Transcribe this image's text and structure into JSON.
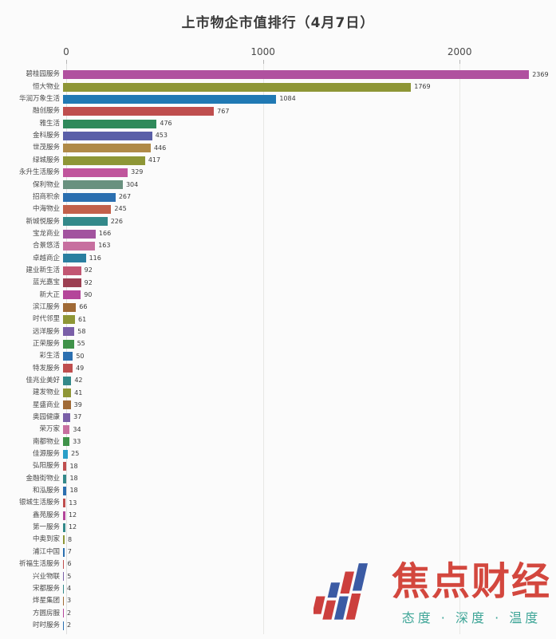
{
  "title": "上市物企市值排行（4月7日）",
  "watermark": {
    "brand": "焦点财经",
    "tagline": "态度 · 深度 · 温度",
    "brand_color": "#d03a30",
    "tagline_color": "#2f9f90",
    "icon_red": "#c9312f",
    "icon_blue": "#2d4f9e"
  },
  "chart_data": {
    "type": "bar",
    "orientation": "horizontal",
    "title": "上市物企市值排行（4月7日）",
    "xlabel": "",
    "ylabel": "",
    "xlim": [
      0,
      2450
    ],
    "x_ticks": [
      0,
      1000,
      2000
    ],
    "grid": "vertical-light",
    "items": [
      {
        "label": "碧桂园服务",
        "value": 2369,
        "color": "#b0519f"
      },
      {
        "label": "恒大物业",
        "value": 1769,
        "color": "#8e9636"
      },
      {
        "label": "华润万象生活",
        "value": 1084,
        "color": "#2079b4"
      },
      {
        "label": "融创服务",
        "value": 767,
        "color": "#bf4e4e"
      },
      {
        "label": "雅生活",
        "value": 476,
        "color": "#2f8a5b"
      },
      {
        "label": "金科服务",
        "value": 453,
        "color": "#5a5fa8"
      },
      {
        "label": "世茂服务",
        "value": 446,
        "color": "#b08a47"
      },
      {
        "label": "绿城服务",
        "value": 417,
        "color": "#8e9636"
      },
      {
        "label": "永升生活服务",
        "value": 329,
        "color": "#c0559c"
      },
      {
        "label": "保利物业",
        "value": 304,
        "color": "#69917f"
      },
      {
        "label": "招商积余",
        "value": 267,
        "color": "#2b6fb0"
      },
      {
        "label": "中海物业",
        "value": 245,
        "color": "#c2604a"
      },
      {
        "label": "新城悦服务",
        "value": 226,
        "color": "#33898a"
      },
      {
        "label": "宝龙商业",
        "value": 166,
        "color": "#a2539f"
      },
      {
        "label": "合景悠活",
        "value": 163,
        "color": "#c76f9f"
      },
      {
        "label": "卓越商企",
        "value": 116,
        "color": "#2a7fa0"
      },
      {
        "label": "建业新生活",
        "value": 92,
        "color": "#c25672"
      },
      {
        "label": "蓝光嘉宝",
        "value": 92,
        "color": "#9c3f52"
      },
      {
        "label": "新大正",
        "value": 90,
        "color": "#b4459a"
      },
      {
        "label": "滨江服务",
        "value": 66,
        "color": "#a06a36"
      },
      {
        "label": "时代邻里",
        "value": 61,
        "color": "#8e9636"
      },
      {
        "label": "远洋服务",
        "value": 58,
        "color": "#7a5fa8"
      },
      {
        "label": "正荣服务",
        "value": 55,
        "color": "#3f9249"
      },
      {
        "label": "彩生活",
        "value": 50,
        "color": "#2b6fb0"
      },
      {
        "label": "特发服务",
        "value": 49,
        "color": "#bf4e4e"
      },
      {
        "label": "佳兆业美好",
        "value": 42,
        "color": "#33898a"
      },
      {
        "label": "建发物业",
        "value": 41,
        "color": "#8e9636"
      },
      {
        "label": "星盛商业",
        "value": 39,
        "color": "#a06a36"
      },
      {
        "label": "奥园健康",
        "value": 37,
        "color": "#7a5fa8"
      },
      {
        "label": "荣万家",
        "value": 34,
        "color": "#c76f9f"
      },
      {
        "label": "南都物业",
        "value": 33,
        "color": "#3f9249"
      },
      {
        "label": "佳源服务",
        "value": 25,
        "color": "#2a9fc8"
      },
      {
        "label": "弘阳服务",
        "value": 18,
        "color": "#bf4e4e"
      },
      {
        "label": "金融街物业",
        "value": 18,
        "color": "#33898a"
      },
      {
        "label": "和泓服务",
        "value": 18,
        "color": "#2b6fb0"
      },
      {
        "label": "银城生活服务",
        "value": 13,
        "color": "#bf4e4e"
      },
      {
        "label": "鑫苑服务",
        "value": 12,
        "color": "#b4459a"
      },
      {
        "label": "第一服务",
        "value": 12,
        "color": "#33898a"
      },
      {
        "label": "中奥到家",
        "value": 8,
        "color": "#8e9636"
      },
      {
        "label": "浦江中国",
        "value": 7,
        "color": "#2b6fb0"
      },
      {
        "label": "祈福生活服务",
        "value": 6,
        "color": "#bf4e4e"
      },
      {
        "label": "兴业物联",
        "value": 5,
        "color": "#7a5fa8"
      },
      {
        "label": "宋都服务",
        "value": 4,
        "color": "#33898a"
      },
      {
        "label": "烨星集团",
        "value": 3,
        "color": "#a06a36"
      },
      {
        "label": "方圆房服",
        "value": 2,
        "color": "#b4459a"
      },
      {
        "label": "时时服务",
        "value": 2,
        "color": "#2b6fb0"
      }
    ]
  }
}
